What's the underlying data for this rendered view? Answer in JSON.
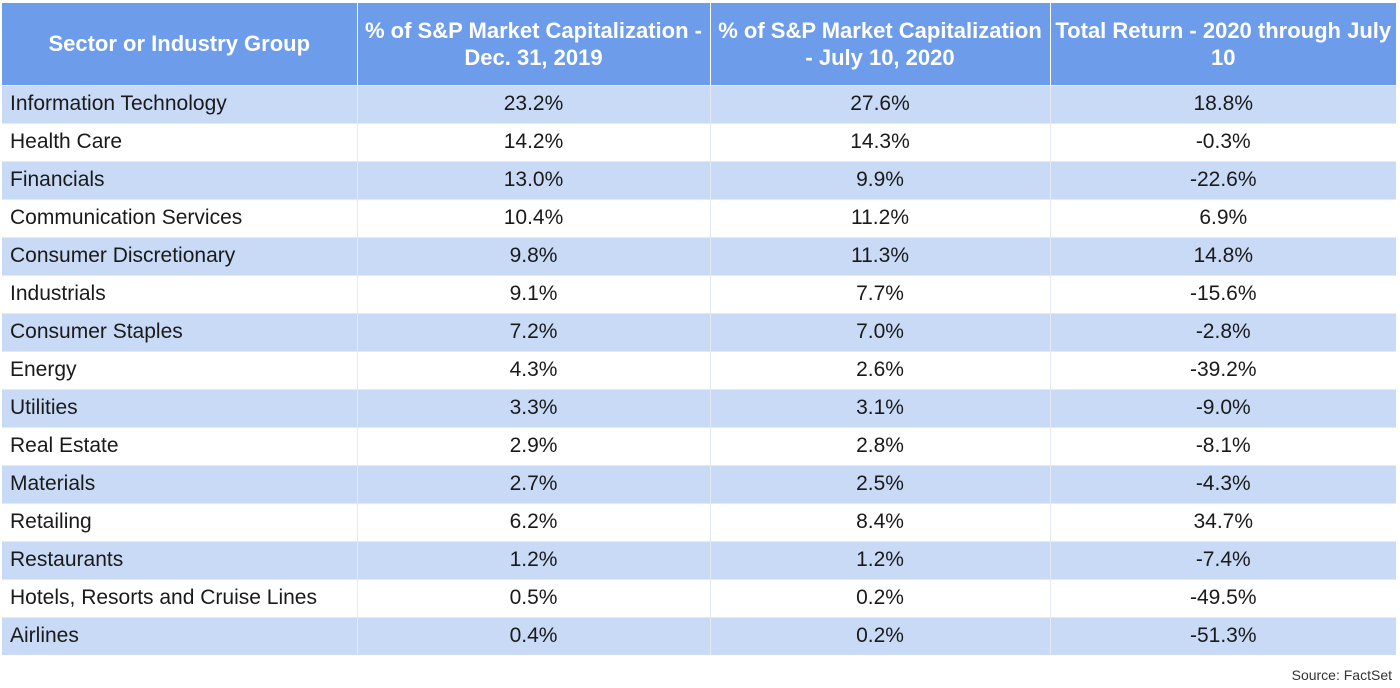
{
  "chart_data": {
    "type": "table",
    "columns": [
      "Sector or Industry Group",
      "% of S&P Market Capitalization - Dec. 31, 2019",
      "% of S&P Market Capitalization - July 10, 2020",
      "Total Return - 2020 through July 10"
    ],
    "rows": [
      [
        "Information Technology",
        "23.2%",
        "27.6%",
        "18.8%"
      ],
      [
        "Health Care",
        "14.2%",
        "14.3%",
        "-0.3%"
      ],
      [
        "Financials",
        "13.0%",
        "9.9%",
        "-22.6%"
      ],
      [
        "Communication Services",
        "10.4%",
        "11.2%",
        "6.9%"
      ],
      [
        "Consumer Discretionary",
        "9.8%",
        "11.3%",
        "14.8%"
      ],
      [
        "Industrials",
        "9.1%",
        "7.7%",
        "-15.6%"
      ],
      [
        "Consumer Staples",
        "7.2%",
        "7.0%",
        "-2.8%"
      ],
      [
        "Energy",
        "4.3%",
        "2.6%",
        "-39.2%"
      ],
      [
        "Utilities",
        "3.3%",
        "3.1%",
        "-9.0%"
      ],
      [
        "Real Estate",
        "2.9%",
        "2.8%",
        "-8.1%"
      ],
      [
        "Materials",
        "2.7%",
        "2.5%",
        "-4.3%"
      ],
      [
        "Retailing",
        "6.2%",
        "8.4%",
        "34.7%"
      ],
      [
        "Restaurants",
        "1.2%",
        "1.2%",
        "-7.4%"
      ],
      [
        "Hotels, Resorts and Cruise Lines",
        "0.5%",
        "0.2%",
        "-49.5%"
      ],
      [
        "Airlines",
        "0.4%",
        "0.2%",
        "-51.3%"
      ]
    ],
    "source": "Source: FactSet",
    "colors": {
      "header": "#6d9ceb",
      "header_text": "#ffffff",
      "band": "#c9daf7",
      "row": "#ffffff"
    }
  }
}
